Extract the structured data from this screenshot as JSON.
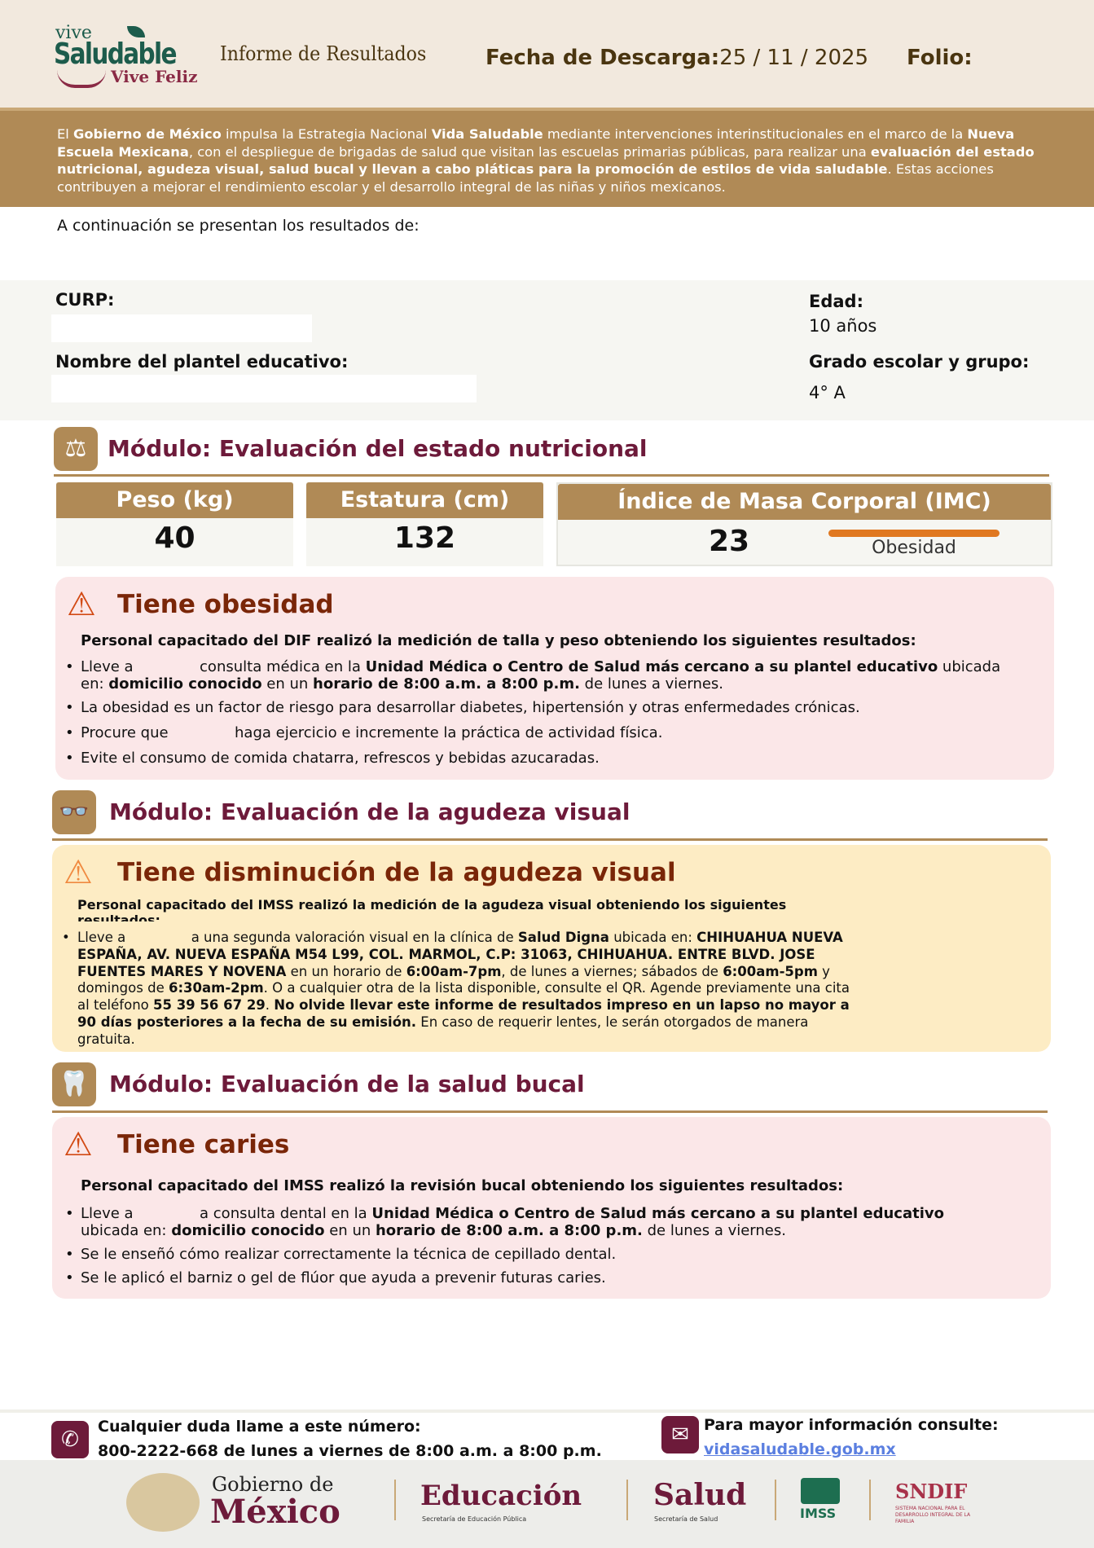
{
  "header": {
    "logo": {
      "line1": "vive",
      "line2": "Saludable",
      "line3": "Vive Feliz"
    },
    "title": "Informe de Resultados",
    "fecha_label": "Fecha de Descarga:",
    "fecha_value": "25 / 11 / 2025",
    "folio_label": "Folio:"
  },
  "intro": {
    "p1": "El ",
    "b1": "Gobierno de México",
    "p2": " impulsa la Estrategia Nacional ",
    "b2": "Vida Saludable",
    "p3": " mediante intervenciones interinstitucionales en el marco de la ",
    "b3": "Nueva Escuela Mexicana",
    "p4": ", con el despliegue de brigadas de salud que visitan las escuelas primarias públicas, para realizar una ",
    "b4": "evaluación del estado nutricional, agudeza visual, salud bucal y llevan a cabo pláticas para la promoción de estilos de vida saludable",
    "p5": ". Estas acciones contribuyen a mejorar el rendimiento escolar y el desarrollo integral de las niñas y niños mexicanos."
  },
  "results_intro": "A continuación se presentan los resultados de:",
  "student": {
    "curp_label": "CURP:",
    "school_label": "Nombre del plantel educativo:",
    "age_label": "Edad:",
    "age_value": "10 años",
    "grade_label": "Grado escolar y grupo:",
    "grade_value": "4° A"
  },
  "nutrition": {
    "title": "Módulo: Evaluación del estado nutricional",
    "icon": "scale-icon",
    "weight_label": "Peso (kg)",
    "weight": "40",
    "height_label": "Estatura (cm)",
    "height": "132",
    "bmi_label": "Índice de Masa Corporal (IMC)",
    "bmi": "23",
    "bmi_status": "Obesidad",
    "status_color": "#e07820",
    "alert": {
      "title": "Tiene obesidad",
      "icon": "warning-icon",
      "subtitle": "Personal capacitado del DIF realizó la medición de talla y peso obteniendo los siguientes resultados:",
      "b1a": "Lleve a ",
      "b1b": " consulta médica en la ",
      "b1c": "Unidad Médica o Centro de Salud más cercano a su plantel educativo",
      "b1d": " ubicada en: ",
      "b1e": "domicilio conocido",
      "b1f": " en un ",
      "b1g": "horario de 8:00 a.m. a 8:00 p.m.",
      "b1h": " de lunes a viernes.",
      "b2": "La obesidad es un factor de riesgo para desarrollar diabetes, hipertensión y otras enfermedades crónicas.",
      "b3a": "Procure que ",
      "b3b": " haga ejercicio e incremente la práctica de actividad física.",
      "b4": "Evite el consumo de comida chatarra, refrescos y bebidas azucaradas."
    }
  },
  "vision": {
    "title": "Módulo: Evaluación de la agudeza visual",
    "icon": "glasses-icon",
    "alert": {
      "title": "Tiene disminución de la agudeza visual",
      "icon": "warning-icon",
      "subtitle": "Personal capacitado del IMSS realizó la medición de la agudeza visual obteniendo los siguientes resultados:",
      "t1": "Lleve a ",
      "t2": " a una segunda valoración visual en la clínica de ",
      "t3": "Salud Digna",
      "t4": " ubicada en: ",
      "t5": "CHIHUAHUA NUEVA ESPAÑA, AV. NUEVA ESPAÑA M54 L99, COL. MARMOL, C.P: 31063, CHIHUAHUA. ENTRE BLVD. JOSE FUENTES MARES Y NOVENA",
      "t6": " en un horario de ",
      "t7": "6:00am-7pm",
      "t8": ", de lunes a viernes; sábados de ",
      "t9": "6:00am-5pm",
      "t10": " y domingos de ",
      "t11": "6:30am-2pm",
      "t12": ". O a cualquier otra de la lista disponible, consulte el QR. Agende previamente una cita al teléfono ",
      "t13": "55 39 56 67 29",
      "t14": ". ",
      "t15": "No olvide llevar este informe de resultados impreso en un lapso no mayor a 90 días posteriores a la fecha de su emisión.",
      "t16": " En caso de requerir lentes, le serán otorgados de manera gratuita."
    }
  },
  "dental": {
    "title": "Módulo: Evaluación de la salud bucal",
    "icon": "tooth-icon",
    "alert": {
      "title": "Tiene caries",
      "icon": "warning-icon",
      "subtitle": "Personal capacitado del IMSS realizó la revisión bucal obteniendo los siguientes resultados:",
      "b1a": "Lleve a ",
      "b1b": " a consulta dental en la ",
      "b1c": "Unidad Médica o Centro de Salud más cercano a su plantel educativo",
      "b1d": " ubicada en: ",
      "b1e": "domicilio conocido",
      "b1f": " en un ",
      "b1g": "horario de 8:00 a.m. a 8:00 p.m.",
      "b1h": " de lunes a viernes.",
      "b2": "Se le enseñó cómo realizar correctamente la técnica de cepillado dental.",
      "b3": "Se le aplicó el barniz o gel de flúor que ayuda a prevenir futuras caries."
    }
  },
  "footer": {
    "phone_label": "Cualquier duda llame a este número:",
    "phone": "800-2222-668 de lunes a viernes de 8:00 a.m. a 8:00 p.m.",
    "info_label": "Para mayor información consulte:",
    "link": "vidasaludable.gob.mx",
    "logos": {
      "gob1": "Gobierno de",
      "gob2": "México",
      "edu": "Educación",
      "edu_sub": "Secretaría de Educación Pública",
      "salud": "Salud",
      "salud_sub": "Secretaría de Salud",
      "imss": "IMSS",
      "sndif": "SNDIF",
      "sndif_sub": "SISTEMA NACIONAL PARA EL DESARROLLO INTEGRAL DE LA FAMILIA"
    }
  },
  "colors": {
    "gold": "#b08a56",
    "wine": "#6d1a3a",
    "alert_red_bg": "#fbe7e8",
    "alert_yellow_bg": "#fdecc4"
  }
}
